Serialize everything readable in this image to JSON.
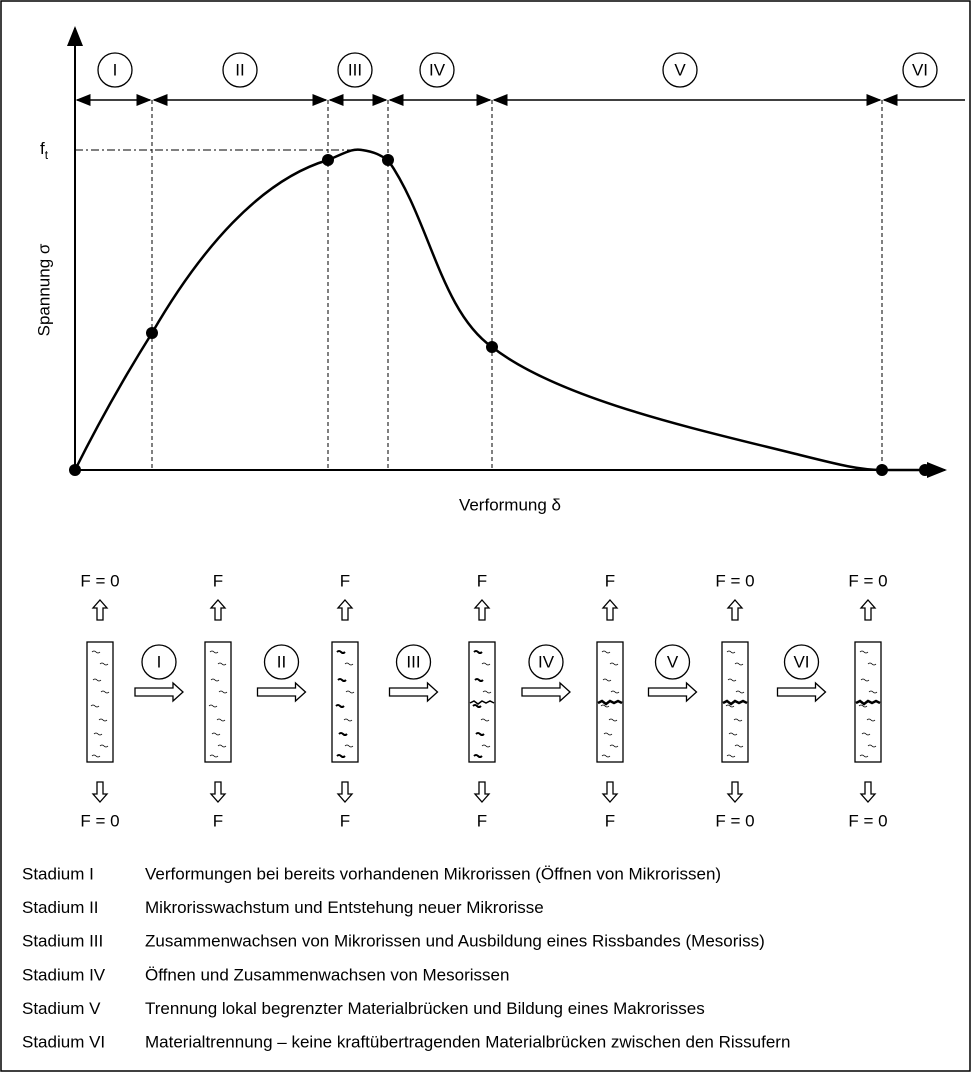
{
  "axes": {
    "y_label": "Spannung σ",
    "x_label": "Verformung δ",
    "peak_label": "f",
    "peak_label_sub": "t"
  },
  "stages": [
    "I",
    "II",
    "III",
    "IV",
    "V",
    "VI"
  ],
  "specimens": [
    {
      "top": "F = 0",
      "bottom": "F = 0"
    },
    {
      "top": "F",
      "bottom": "F"
    },
    {
      "top": "F",
      "bottom": "F"
    },
    {
      "top": "F",
      "bottom": "F"
    },
    {
      "top": "F",
      "bottom": "F"
    },
    {
      "top": "F = 0",
      "bottom": "F = 0"
    },
    {
      "top": "F = 0",
      "bottom": "F = 0"
    }
  ],
  "legend": [
    {
      "stage": "Stadium I",
      "text": "Verformungen bei bereits vorhandenen Mikrorissen (Öffnen von Mikrorissen)"
    },
    {
      "stage": "Stadium II",
      "text": "Mikrorisswachstum und Entstehung neuer Mikrorisse"
    },
    {
      "stage": "Stadium III",
      "text": "Zusammenwachsen von Mikrorissen und Ausbildung eines Rissbandes (Mesoriss)"
    },
    {
      "stage": "Stadium IV",
      "text": "Öffnen und Zusammenwachsen von Mesorissen"
    },
    {
      "stage": "Stadium V",
      "text": "Trennung lokal begrenzter Materialbrücken und Bildung eines Makrorisses"
    },
    {
      "stage": "Stadium VI",
      "text": "Materialtrennung – keine kraftübertragenden Materialbrücken zwischen den Rissufern"
    }
  ]
}
